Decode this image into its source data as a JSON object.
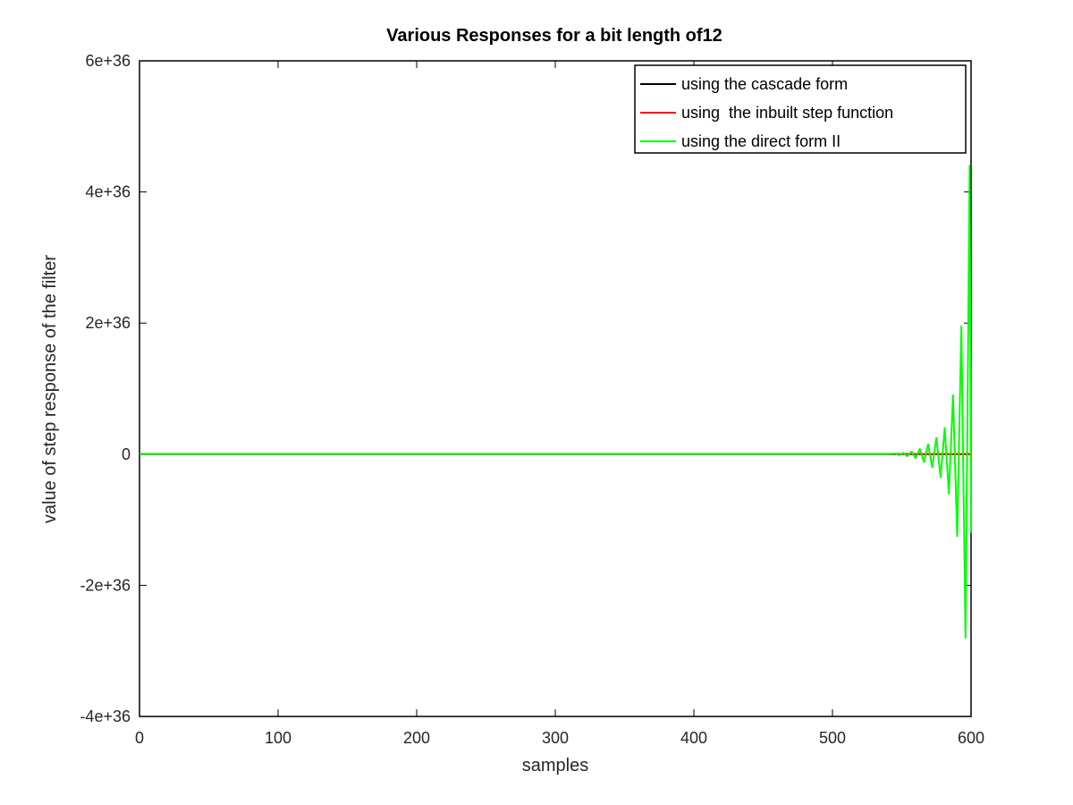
{
  "chart_data": {
    "type": "line",
    "title": "Various Responses for a bit length of12",
    "xlabel": "samples",
    "ylabel": "value of step response of the filter",
    "xlim": [
      0,
      600
    ],
    "ylim": [
      -4e+36,
      6e+36
    ],
    "x_ticks": [
      0,
      100,
      200,
      300,
      400,
      500,
      600
    ],
    "x_tick_labels": [
      "0",
      "100",
      "200",
      "300",
      "400",
      "500",
      "600"
    ],
    "y_ticks": [
      -4e+36,
      -2e+36,
      0,
      2e+36,
      4e+36,
      6e+36
    ],
    "y_tick_labels": [
      "-4e+36",
      "-2e+36",
      "0",
      "2e+36",
      "4e+36",
      "6e+36"
    ],
    "grid": false,
    "legend_position": "top-right",
    "series": [
      {
        "name": "using the cascade form",
        "color": "#000000",
        "x": [
          0,
          600
        ],
        "y": [
          0,
          0
        ]
      },
      {
        "name": "using  the inbuilt step function",
        "color": "#ff0000",
        "x": [
          0,
          600
        ],
        "y": [
          0,
          0
        ]
      },
      {
        "name": "using the direct form II",
        "color": "#00ff00",
        "x": [
          0,
          540,
          545,
          548,
          551,
          554,
          557,
          560,
          563,
          566,
          569,
          572,
          575,
          578,
          581,
          584,
          587,
          590,
          593,
          596,
          599,
          600
        ],
        "y": [
          0,
          0,
          1e+34,
          -1.5e+34,
          2e+34,
          -3e+34,
          4e+34,
          -6e+34,
          8e+34,
          -1.2e+35,
          1.5e+35,
          -2e+35,
          2.5e+35,
          -3.5e+35,
          4e+35,
          -6e+35,
          9e+35,
          -1.25e+36,
          1.95e+36,
          -2.8e+36,
          4.4e+36,
          -1.2e+36
        ]
      }
    ]
  }
}
